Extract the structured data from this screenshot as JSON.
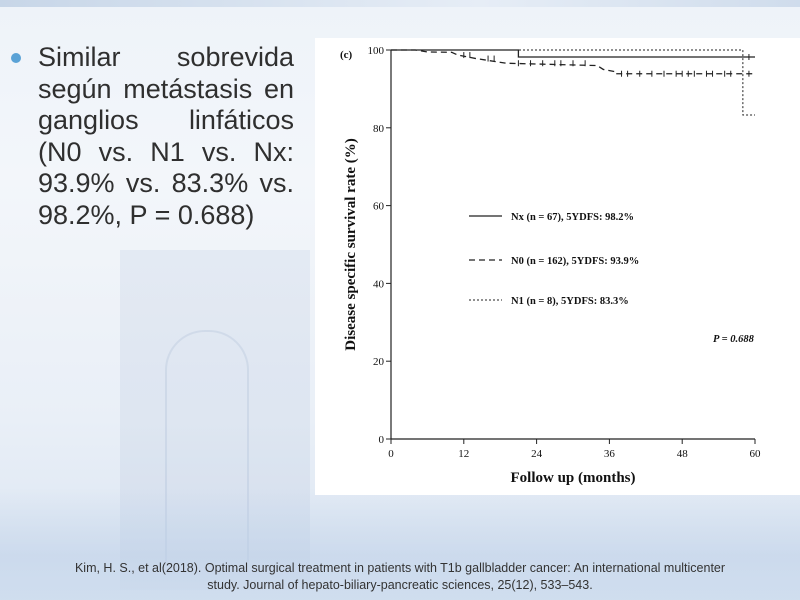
{
  "slide": {
    "bullet": "Similar sobrevida según metástasis en ganglios linfáticos (N0 vs. N1 vs. Nx: 93.9% vs. 83.3% vs. 98.2%, P = 0.688)",
    "citation_line1": "Kim, H. S., et al(2018). Optimal surgical treatment in patients with T1b gallbladder cancer: An international multicenter",
    "citation_line2": "study. Journal of hepato-biliary-pancreatic sciences, 25(12), 533–543.",
    "bullet_color": "#5aa2d6"
  },
  "chart_data": {
    "type": "line",
    "panel_label": "(c)",
    "xlabel": "Follow up (months)",
    "ylabel": "Disease specific survival rate (%)",
    "xlim": [
      0,
      60
    ],
    "ylim": [
      0,
      100
    ],
    "xticks": [
      0,
      12,
      24,
      36,
      48,
      60
    ],
    "yticks": [
      0,
      20,
      40,
      60,
      80,
      100
    ],
    "series": [
      {
        "name": "Nx",
        "legend": "Nx (n = 67), 5YDFS: 98.2%",
        "style": "solid",
        "x": [
          0,
          21,
          21,
          60
        ],
        "y": [
          100,
          100,
          98.2,
          98.2
        ],
        "censor_x": [
          59
        ]
      },
      {
        "name": "N0",
        "legend": "N0 (n = 162), 5YDFS: 93.9%",
        "style": "dashed",
        "x": [
          0,
          4,
          6,
          6,
          10,
          11,
          11,
          14,
          14,
          19,
          19,
          34,
          35,
          37,
          37,
          60
        ],
        "y": [
          100,
          100,
          99.5,
          99.5,
          99.4,
          98.7,
          98.7,
          97.8,
          97.8,
          96.6,
          96.6,
          96.0,
          95.0,
          94.4,
          93.9,
          93.9
        ],
        "censor_x": [
          12,
          13,
          16,
          17,
          21,
          23,
          25,
          27,
          28,
          30,
          32,
          38,
          39,
          41,
          43,
          45,
          47,
          48,
          49,
          50,
          52,
          53,
          55,
          56,
          59
        ]
      },
      {
        "name": "N1",
        "legend": "N1 (n = 8), 5YDFS: 83.3%",
        "style": "dotted",
        "x": [
          0,
          58,
          58,
          60
        ],
        "y": [
          100,
          100,
          83.3,
          83.3
        ],
        "censor_x": []
      }
    ],
    "annotation": "P = 0.688",
    "legend_position": "center-left"
  }
}
